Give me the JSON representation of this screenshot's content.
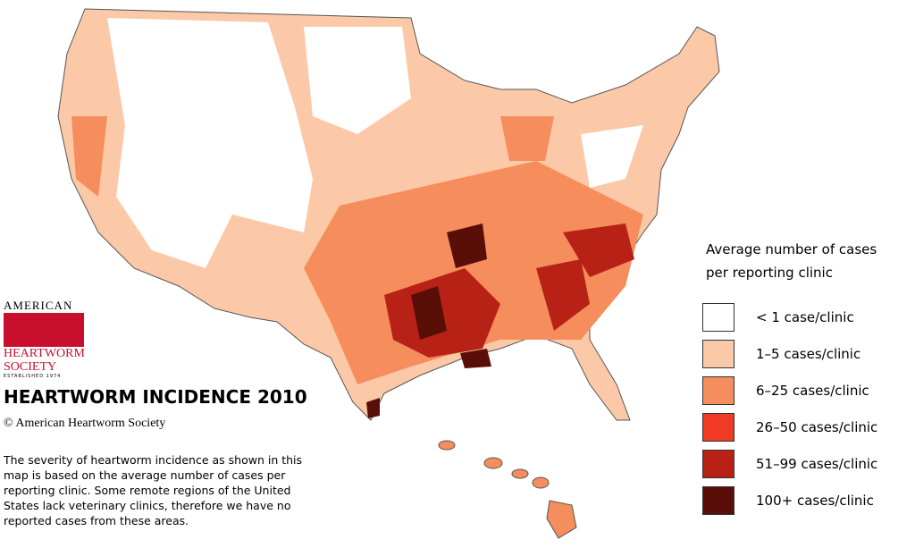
{
  "logo": {
    "top": "AMERICAN",
    "middle": "HEARTWORM",
    "bottom": "SOCIETY",
    "established": "ESTABLISHED 1974"
  },
  "title": "HEARTWORM INCIDENCE 2010",
  "copyright": "© American Heartworm Society",
  "description": "The severity of heartworm incidence as shown in this map is based on the average number of cases per reporting clinic.  Some remote regions of the United States lack veterinary clinics, therefore we have no reported cases from these areas.",
  "legend": {
    "title": "Average number of cases per reporting clinic",
    "items": [
      {
        "label": "< 1 case/clinic",
        "color": "#ffffff"
      },
      {
        "label": "1–5 cases/clinic",
        "color": "#fcc9a8"
      },
      {
        "label": "6–25  cases/clinic",
        "color": "#f58d5c"
      },
      {
        "label": "26–50  cases/clinic",
        "color": "#f03a24"
      },
      {
        "label": "51–99  cases/clinic",
        "color": "#b82216"
      },
      {
        "label": "100+ cases/clinic",
        "color": "#5a0e08"
      }
    ]
  }
}
